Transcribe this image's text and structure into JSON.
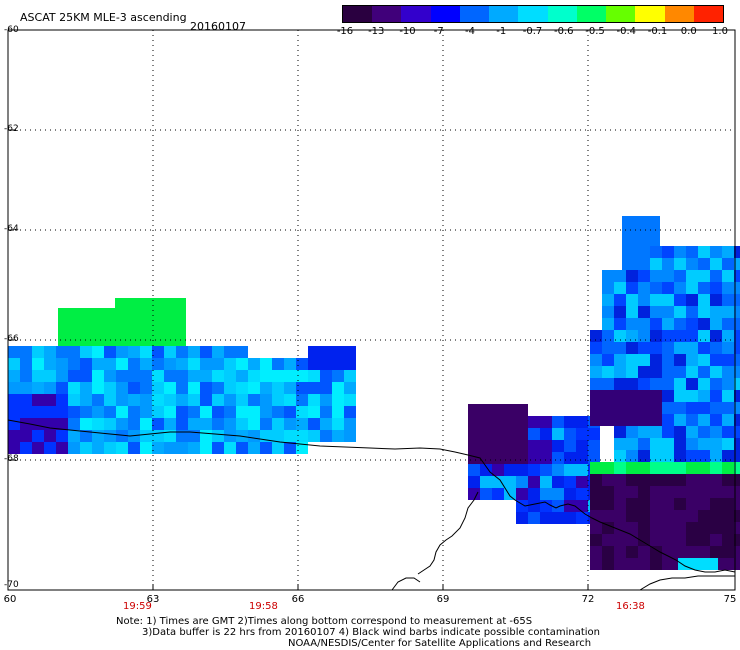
{
  "header": {
    "title": "ASCAT 25KM MLE-3 ascending",
    "date": "20160107"
  },
  "colorbar": {
    "labels": [
      "-16",
      "-13",
      "-10",
      "-7",
      "-4",
      "-1",
      "-0.7",
      "-0.6",
      "-0.5",
      "-0.4",
      "-0.1",
      "0.0",
      "1.0"
    ],
    "colors": [
      "#2a0040",
      "#40007a",
      "#3300cc",
      "#0000ff",
      "#0066ff",
      "#00aaff",
      "#00ddff",
      "#00ffcc",
      "#00ff66",
      "#66ff00",
      "#ffff00",
      "#ff8800",
      "#ff2200"
    ]
  },
  "axes": {
    "y_ticks": [
      "-60",
      "-62",
      "-64",
      "-66",
      "-68",
      "-70"
    ],
    "x_ticks": [
      "60",
      "63",
      "66",
      "69",
      "72",
      "75"
    ],
    "x_range": [
      60,
      75
    ],
    "y_range": [
      -70,
      -60
    ],
    "grid": "dotted"
  },
  "pass_times": [
    "19:59",
    "19:58",
    "16:38"
  ],
  "notes": {
    "line1": "Note: 1) Times are GMT 2)Times along bottom correspond to measurement at -65S",
    "line2": "3)Data buffer is 22 hrs from 20160107 4) Black wind barbs indicate possible contamination",
    "line3": "NOAA/NESDIS/Center for Satellite Applications and Research"
  },
  "colors": {
    "coast": "#000000",
    "grid": "#000000",
    "time_labels": "#cc0000"
  }
}
